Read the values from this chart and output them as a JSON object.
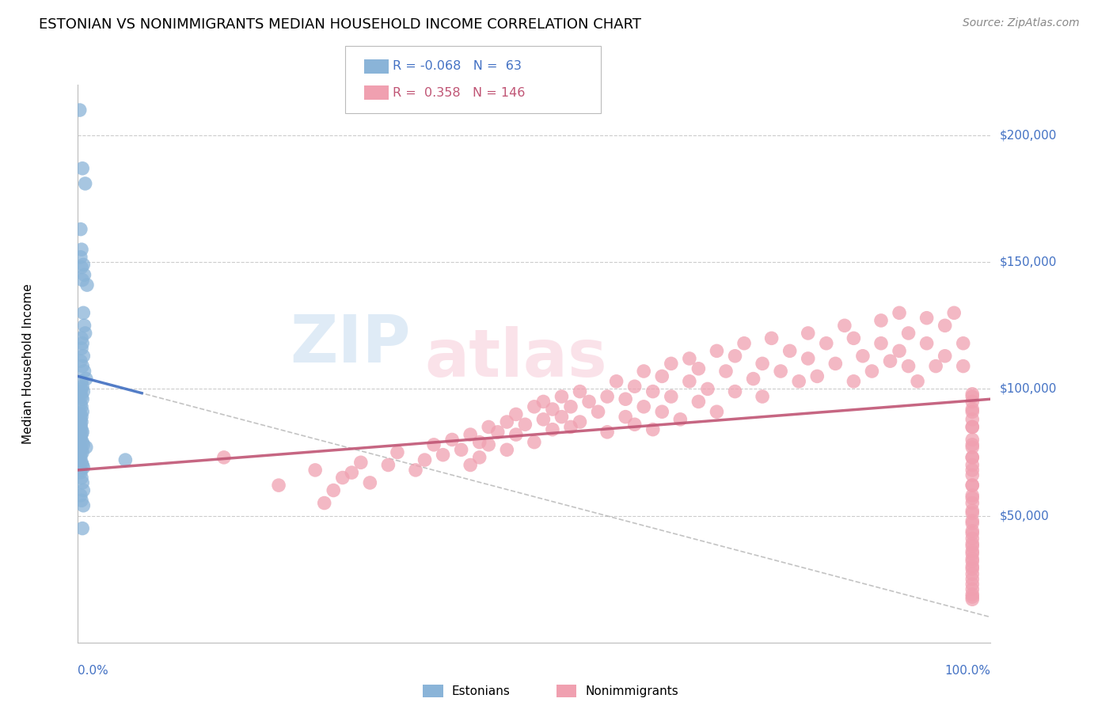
{
  "title": "ESTONIAN VS NONIMMIGRANTS MEDIAN HOUSEHOLD INCOME CORRELATION CHART",
  "source_text": "Source: ZipAtlas.com",
  "ylabel": "Median Household Income",
  "y_tick_labels": [
    "$50,000",
    "$100,000",
    "$150,000",
    "$200,000"
  ],
  "y_tick_values": [
    50000,
    100000,
    150000,
    200000
  ],
  "blue_r": "-0.068",
  "blue_n": "63",
  "pink_r": "0.358",
  "pink_n": "146",
  "title_fontsize": 13,
  "source_fontsize": 10,
  "axis_label_color": "#4472C4",
  "background_color": "#ffffff",
  "blue_color": "#8AB4D8",
  "pink_color": "#F0A0B0",
  "blue_line_color": "#4472C4",
  "pink_line_color": "#C05575",
  "grid_color": "#CCCCCC",
  "wm_blue": "#B8D4EC",
  "wm_pink": "#F5C0D0",
  "blue_scatter_x": [
    0.2,
    0.5,
    0.8,
    0.3,
    0.4,
    0.6,
    0.7,
    1.0,
    0.3,
    0.4,
    0.5,
    0.6,
    0.7,
    0.8,
    0.4,
    0.5,
    0.4,
    0.6,
    0.3,
    0.5,
    0.7,
    0.9,
    0.4,
    0.5,
    0.4,
    0.6,
    0.3,
    0.4,
    0.5,
    0.3,
    0.4,
    0.5,
    0.3,
    0.4,
    0.3,
    0.4,
    0.3,
    0.3,
    0.4,
    0.5,
    0.4,
    0.3,
    0.3,
    0.5,
    0.6,
    0.9,
    0.4,
    0.5,
    0.3,
    0.3,
    5.2,
    0.4,
    0.5,
    0.6,
    0.3,
    0.3,
    0.4,
    0.5,
    0.6,
    0.3,
    0.4,
    0.6,
    0.5
  ],
  "blue_scatter_y": [
    210000,
    187000,
    181000,
    163000,
    155000,
    149000,
    145000,
    141000,
    152000,
    148000,
    143000,
    130000,
    125000,
    122000,
    120000,
    118000,
    116000,
    113000,
    111000,
    109000,
    107000,
    104000,
    103000,
    101000,
    100000,
    99000,
    98000,
    97000,
    96000,
    94000,
    93000,
    91000,
    90000,
    89000,
    88000,
    87000,
    86000,
    85000,
    84000,
    83000,
    82000,
    81000,
    80000,
    79000,
    78000,
    77000,
    76000,
    75000,
    74000,
    73000,
    72000,
    71000,
    70000,
    69000,
    68000,
    67000,
    65000,
    63000,
    60000,
    58000,
    56000,
    54000,
    45000
  ],
  "pink_scatter_x": [
    16,
    22,
    26,
    27,
    28,
    29,
    30,
    31,
    32,
    34,
    35,
    37,
    38,
    39,
    40,
    41,
    42,
    43,
    43,
    44,
    44,
    45,
    45,
    46,
    47,
    47,
    48,
    48,
    49,
    50,
    50,
    51,
    51,
    52,
    52,
    53,
    53,
    54,
    54,
    55,
    55,
    56,
    57,
    58,
    58,
    59,
    60,
    60,
    61,
    61,
    62,
    62,
    63,
    63,
    64,
    64,
    65,
    65,
    66,
    67,
    67,
    68,
    68,
    69,
    70,
    70,
    71,
    72,
    72,
    73,
    74,
    75,
    75,
    76,
    77,
    78,
    79,
    80,
    80,
    81,
    82,
    83,
    84,
    85,
    85,
    86,
    87,
    88,
    88,
    89,
    90,
    90,
    91,
    91,
    92,
    93,
    93,
    94,
    95,
    95,
    96,
    97,
    97,
    98,
    98,
    98,
    98,
    98,
    98,
    98,
    98,
    98,
    98,
    98,
    98,
    98,
    98,
    98,
    98,
    98,
    98,
    98,
    98,
    98,
    98,
    98,
    98,
    98,
    98,
    98,
    98,
    98,
    98,
    98,
    98,
    98,
    98,
    98,
    98,
    98,
    98,
    98,
    98,
    98,
    98,
    98
  ],
  "pink_scatter_y": [
    73000,
    62000,
    68000,
    55000,
    60000,
    65000,
    67000,
    71000,
    63000,
    70000,
    75000,
    68000,
    72000,
    78000,
    74000,
    80000,
    76000,
    82000,
    70000,
    79000,
    73000,
    85000,
    78000,
    83000,
    87000,
    76000,
    82000,
    90000,
    86000,
    93000,
    79000,
    88000,
    95000,
    84000,
    92000,
    89000,
    97000,
    85000,
    93000,
    99000,
    87000,
    95000,
    91000,
    97000,
    83000,
    103000,
    89000,
    96000,
    101000,
    86000,
    107000,
    93000,
    99000,
    84000,
    105000,
    91000,
    110000,
    97000,
    88000,
    112000,
    103000,
    95000,
    108000,
    100000,
    115000,
    91000,
    107000,
    113000,
    99000,
    118000,
    104000,
    110000,
    97000,
    120000,
    107000,
    115000,
    103000,
    122000,
    112000,
    105000,
    118000,
    110000,
    125000,
    103000,
    120000,
    113000,
    107000,
    127000,
    118000,
    111000,
    130000,
    115000,
    109000,
    122000,
    103000,
    128000,
    118000,
    109000,
    125000,
    113000,
    130000,
    118000,
    109000,
    97000,
    91000,
    85000,
    78000,
    73000,
    68000,
    62000,
    57000,
    52000,
    47000,
    43000,
    39000,
    36000,
    33000,
    30000,
    98000,
    95000,
    92000,
    88000,
    85000,
    80000,
    77000,
    73000,
    70000,
    66000,
    62000,
    58000,
    55000,
    51000,
    48000,
    44000,
    41000,
    38000,
    35000,
    32000,
    29000,
    27000,
    25000,
    23000,
    21000,
    19000,
    18000,
    17000
  ]
}
